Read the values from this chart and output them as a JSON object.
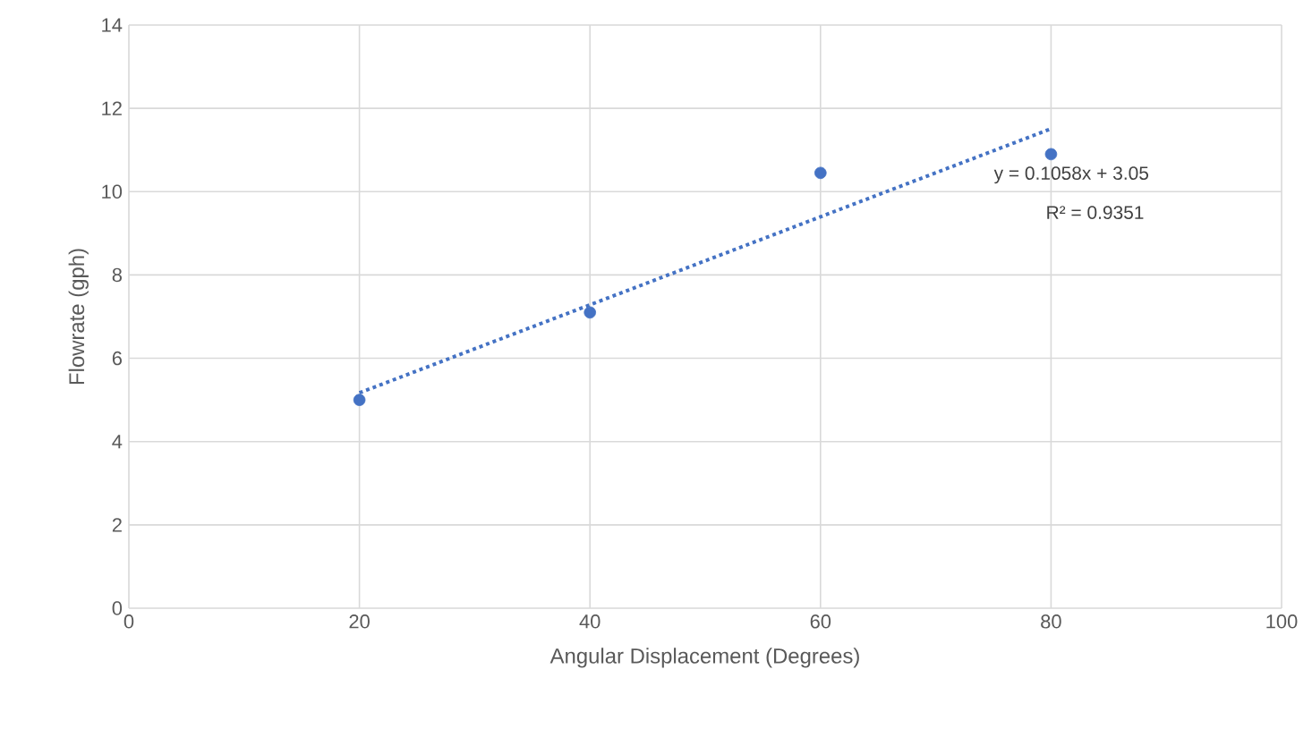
{
  "chart_data": {
    "type": "scatter",
    "xlabel": "Angular Displacement (Degrees)",
    "ylabel": "Flowrate (gph)",
    "xlim": [
      0,
      100
    ],
    "xticks": [
      0,
      20,
      40,
      60,
      80,
      100
    ],
    "ylim": [
      0,
      14
    ],
    "yticks": [
      0,
      2,
      4,
      6,
      8,
      10,
      12,
      14
    ],
    "grid": true,
    "series": [
      {
        "color": "#4472c4",
        "marker": "circle",
        "x": [
          20,
          40,
          60,
          80
        ],
        "values": [
          5.0,
          7.1,
          10.45,
          10.9
        ]
      },
      {
        "type": "line",
        "color": "#4472c4",
        "marker": "none",
        "line_style": "dotted",
        "x": [
          20,
          80
        ],
        "values": [
          5.17,
          11.51
        ]
      }
    ],
    "annotations": [
      "y = 0.1058x + 3.05",
      "R² = 0.9351"
    ]
  }
}
